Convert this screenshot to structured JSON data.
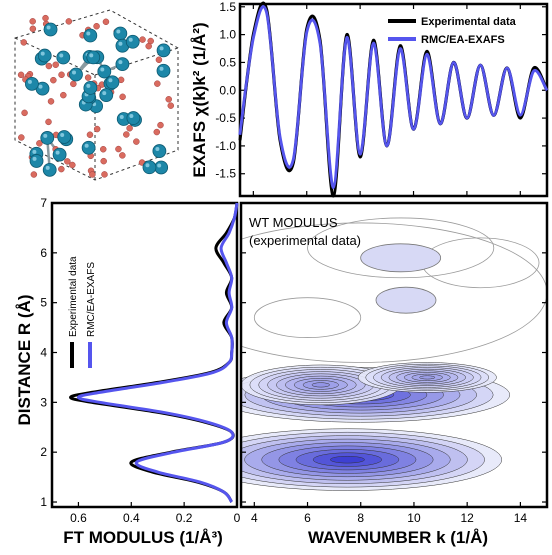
{
  "chart_data": [
    {
      "id": "exafs",
      "type": "line",
      "ylabel": "EXAFS χ(k)k² (1/Å²)",
      "xlim": [
        3.5,
        15
      ],
      "ylim": [
        -1.9,
        1.55
      ],
      "yticks": [
        -1.5,
        -1.0,
        -0.5,
        0.0,
        0.5,
        1.0,
        1.5
      ],
      "ytick_labels": [
        "-1.5",
        "-1.0",
        "-0.5",
        "0.0",
        "0.5",
        "1.0",
        "1.5"
      ],
      "legend_position": "top-right",
      "series": [
        {
          "name": "Experimental data",
          "color": "#000000",
          "x": [
            3.5,
            4.0,
            4.5,
            5.0,
            5.5,
            6.0,
            6.5,
            7.0,
            7.5,
            8.0,
            8.5,
            9.0,
            9.5,
            10.0,
            10.5,
            11.0,
            11.5,
            12.0,
            12.5,
            13.0,
            13.5,
            14.0,
            14.5,
            15.0
          ],
          "y": [
            -0.9,
            1.0,
            1.45,
            -0.9,
            -1.3,
            1.1,
            0.9,
            -1.9,
            1.0,
            -1.2,
            0.9,
            -1.0,
            0.8,
            -0.7,
            0.7,
            -0.6,
            0.5,
            -0.5,
            0.45,
            -0.45,
            0.4,
            -0.5,
            0.4,
            0.0
          ]
        },
        {
          "name": "RMC/EA-EXAFS",
          "color": "#5555ee",
          "x": [
            3.5,
            4.0,
            4.5,
            5.0,
            5.5,
            6.0,
            6.5,
            7.0,
            7.5,
            8.0,
            8.5,
            9.0,
            9.5,
            10.0,
            10.5,
            11.0,
            11.5,
            12.0,
            12.5,
            13.0,
            13.5,
            14.0,
            14.5,
            15.0
          ],
          "y": [
            -0.8,
            0.95,
            1.4,
            -0.85,
            -1.25,
            1.05,
            0.85,
            -1.75,
            0.95,
            -1.15,
            0.85,
            -1.0,
            0.75,
            -0.7,
            0.65,
            -0.6,
            0.5,
            -0.5,
            0.45,
            -0.45,
            0.4,
            -0.45,
            0.35,
            0.0
          ]
        }
      ]
    },
    {
      "id": "ft",
      "type": "line",
      "xlabel": "FT MODULUS (1/Å³)",
      "ylabel": "DISTANCE R (Å)",
      "xlim": [
        0.7,
        0.0
      ],
      "ylim": [
        0.9,
        7.0
      ],
      "xticks": [
        0.6,
        0.4,
        0.2,
        0.0
      ],
      "xtick_labels": [
        "0.6",
        "0.4",
        "0.2",
        "0"
      ],
      "yticks": [
        1,
        2,
        3,
        4,
        5,
        6,
        7
      ],
      "ytick_labels": [
        "1",
        "2",
        "3",
        "4",
        "5",
        "6",
        "7"
      ],
      "legend_position": "top-left",
      "series": [
        {
          "name": "Experimental data",
          "color": "#000000",
          "R": [
            1.0,
            1.2,
            1.4,
            1.6,
            1.8,
            2.0,
            2.2,
            2.4,
            2.6,
            2.8,
            3.0,
            3.1,
            3.2,
            3.4,
            3.6,
            3.8,
            4.0,
            4.3,
            4.6,
            4.9,
            5.2,
            5.5,
            5.8,
            6.1,
            6.4,
            6.7,
            7.0
          ],
          "A": [
            0.02,
            0.05,
            0.15,
            0.32,
            0.4,
            0.25,
            0.05,
            0.02,
            0.12,
            0.3,
            0.55,
            0.63,
            0.55,
            0.3,
            0.1,
            0.03,
            0.02,
            0.02,
            0.05,
            0.02,
            0.04,
            0.02,
            0.05,
            0.08,
            0.04,
            0.01,
            0.0
          ]
        },
        {
          "name": "RMC/EA-EXAFS",
          "color": "#5555ee",
          "R": [
            1.0,
            1.2,
            1.4,
            1.6,
            1.8,
            2.0,
            2.2,
            2.4,
            2.6,
            2.8,
            3.0,
            3.1,
            3.2,
            3.4,
            3.6,
            3.8,
            4.0,
            4.3,
            4.6,
            4.9,
            5.2,
            5.5,
            5.8,
            6.1,
            6.4,
            6.7,
            7.0
          ],
          "A": [
            0.02,
            0.05,
            0.14,
            0.3,
            0.38,
            0.24,
            0.05,
            0.02,
            0.11,
            0.28,
            0.52,
            0.6,
            0.52,
            0.28,
            0.09,
            0.03,
            0.02,
            0.02,
            0.04,
            0.02,
            0.03,
            0.02,
            0.04,
            0.06,
            0.03,
            0.01,
            0.0
          ]
        }
      ]
    },
    {
      "id": "wt",
      "type": "heatmap",
      "label_line1": "WT MODULUS",
      "label_line2": "(experimental data)",
      "xlabel": "WAVENUMBER k (1/Å)",
      "xlim": [
        3.5,
        15
      ],
      "ylim": [
        0.9,
        7.0
      ],
      "xticks": [
        4,
        6,
        8,
        10,
        12,
        14
      ],
      "xtick_labels": [
        "4",
        "6",
        "8",
        "10",
        "12",
        "14"
      ],
      "blobs": [
        {
          "k": 7.5,
          "R": 1.85,
          "peak": 1.0
        },
        {
          "k": 8.0,
          "R": 3.15,
          "peak": 0.95
        },
        {
          "k": 6.5,
          "R": 3.35,
          "peak": 0.5
        },
        {
          "k": 10.5,
          "R": 3.5,
          "peak": 0.45
        }
      ]
    }
  ]
}
